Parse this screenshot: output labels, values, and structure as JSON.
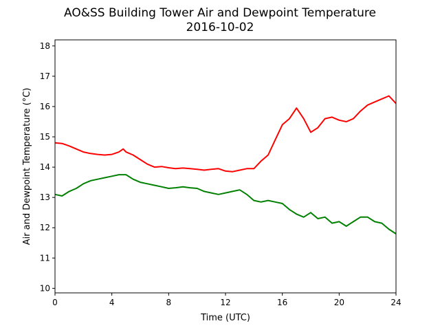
{
  "chart_data": {
    "type": "line",
    "title": "AO&SS Building Tower Air and Dewpoint Temperature",
    "subtitle": "2016-10-02",
    "xlabel": "Time (UTC)",
    "ylabel": "Air and Dewpoint Temperature (°C)",
    "xlim": [
      0,
      24
    ],
    "ylim": [
      9.85,
      18.2
    ],
    "x_ticks": [
      0,
      4,
      8,
      12,
      16,
      20,
      24
    ],
    "y_ticks": [
      10,
      11,
      12,
      13,
      14,
      15,
      16,
      17,
      18
    ],
    "grid": false,
    "legend": "none",
    "series": [
      {
        "color": "#ff0000",
        "x": [
          0,
          0.5,
          1,
          1.5,
          2,
          2.5,
          3,
          3.5,
          4,
          4.5,
          4.8,
          5,
          5.5,
          6,
          6.5,
          7,
          7.5,
          8,
          8.5,
          9,
          9.5,
          10,
          10.5,
          11,
          11.5,
          12,
          12.5,
          13,
          13.5,
          14,
          14.5,
          15,
          15.5,
          16,
          16.5,
          17,
          17.5,
          18,
          18.5,
          19,
          19.5,
          20,
          20.5,
          21,
          21.5,
          22,
          22.5,
          23,
          23.5,
          24
        ],
        "y": [
          14.8,
          14.78,
          14.7,
          14.6,
          14.5,
          14.45,
          14.42,
          14.4,
          14.42,
          14.5,
          14.6,
          14.5,
          14.4,
          14.25,
          14.1,
          14.0,
          14.02,
          13.98,
          13.95,
          13.97,
          13.95,
          13.93,
          13.9,
          13.93,
          13.95,
          13.87,
          13.85,
          13.9,
          13.95,
          13.95,
          14.2,
          14.4,
          14.9,
          15.4,
          15.6,
          15.95,
          15.6,
          15.15,
          15.3,
          15.6,
          15.65,
          15.55,
          15.5,
          15.6,
          15.85,
          16.05,
          16.15,
          16.25,
          16.35,
          16.1
        ]
      },
      {
        "color": "#008000",
        "x": [
          0,
          0.5,
          1,
          1.5,
          2,
          2.5,
          3,
          3.5,
          4,
          4.5,
          5,
          5.5,
          6,
          6.5,
          7,
          7.5,
          8,
          8.5,
          9,
          9.5,
          10,
          10.5,
          11,
          11.5,
          12,
          12.5,
          13,
          13.5,
          14,
          14.5,
          15,
          15.5,
          16,
          16.5,
          17,
          17.5,
          18,
          18.5,
          19,
          19.5,
          20,
          20.5,
          21,
          21.5,
          22,
          22.5,
          23,
          23.5,
          24
        ],
        "y": [
          13.1,
          13.05,
          13.2,
          13.3,
          13.45,
          13.55,
          13.6,
          13.65,
          13.7,
          13.75,
          13.75,
          13.6,
          13.5,
          13.45,
          13.4,
          13.35,
          13.3,
          13.32,
          13.35,
          13.32,
          13.3,
          13.2,
          13.15,
          13.1,
          13.15,
          13.2,
          13.25,
          13.1,
          12.9,
          12.85,
          12.9,
          12.85,
          12.8,
          12.6,
          12.45,
          12.35,
          12.5,
          12.3,
          12.35,
          12.15,
          12.2,
          12.05,
          12.2,
          12.35,
          12.35,
          12.2,
          12.15,
          11.95,
          11.8
        ]
      }
    ]
  }
}
